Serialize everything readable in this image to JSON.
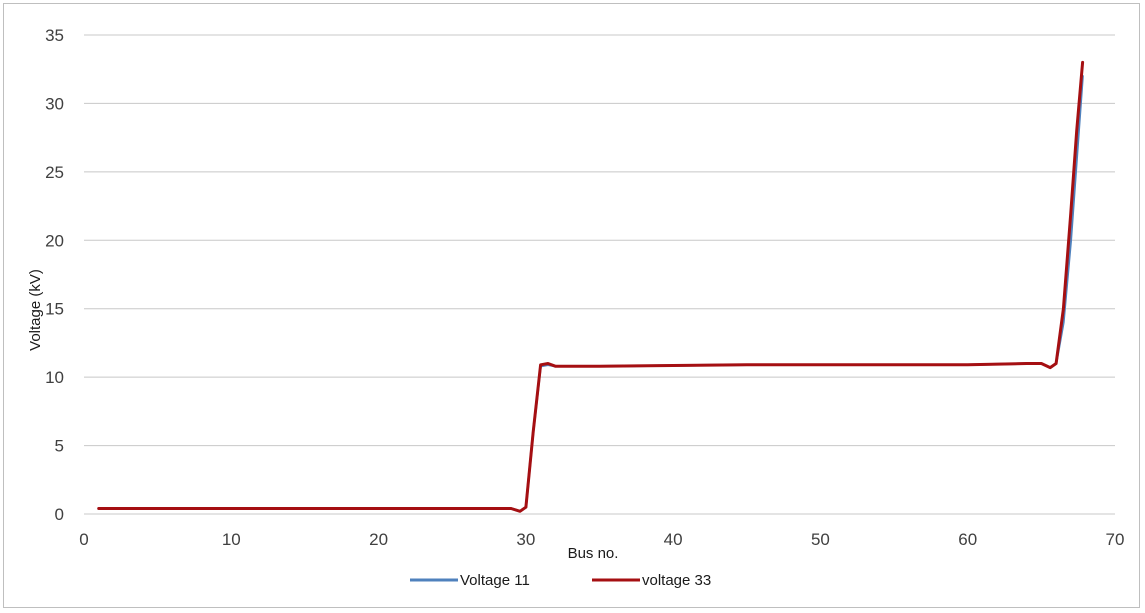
{
  "chart_data": {
    "type": "line",
    "xlabel": "Bus no.",
    "ylabel": "Voltage (kV)",
    "xlim": [
      0,
      70
    ],
    "ylim": [
      0,
      35
    ],
    "xticks": [
      0,
      10,
      20,
      30,
      40,
      50,
      60,
      70
    ],
    "yticks": [
      0,
      5,
      10,
      15,
      20,
      25,
      30,
      35
    ],
    "grid": "horizontal",
    "legend_position": "bottom",
    "series": [
      {
        "name": "Voltage 11",
        "color": "#4f81bd",
        "x": [
          1,
          5,
          10,
          15,
          20,
          25,
          28,
          29,
          29.6,
          30,
          30.5,
          31,
          31.5,
          32,
          35,
          40,
          45,
          50,
          55,
          60,
          64,
          65,
          65.6,
          66,
          66.5,
          67,
          67.4,
          67.8
        ],
        "y": [
          0.4,
          0.4,
          0.4,
          0.4,
          0.4,
          0.4,
          0.4,
          0.4,
          0.2,
          0.5,
          6,
          10.8,
          10.9,
          10.8,
          10.8,
          10.85,
          10.9,
          10.9,
          10.9,
          10.9,
          11,
          11,
          10.7,
          11,
          14,
          20,
          26,
          32
        ]
      },
      {
        "name": "voltage 33",
        "color": "#a50f12",
        "x": [
          1,
          5,
          10,
          15,
          20,
          25,
          28,
          29,
          29.6,
          30,
          30.5,
          31,
          31.5,
          32,
          35,
          40,
          45,
          50,
          55,
          60,
          64,
          65,
          65.6,
          66,
          66.5,
          67,
          67.4,
          67.8
        ],
        "y": [
          0.4,
          0.4,
          0.4,
          0.4,
          0.4,
          0.4,
          0.4,
          0.4,
          0.2,
          0.5,
          6,
          10.9,
          11,
          10.8,
          10.8,
          10.85,
          10.9,
          10.9,
          10.9,
          10.9,
          11,
          11,
          10.7,
          11,
          15,
          22,
          28,
          33
        ]
      }
    ]
  }
}
